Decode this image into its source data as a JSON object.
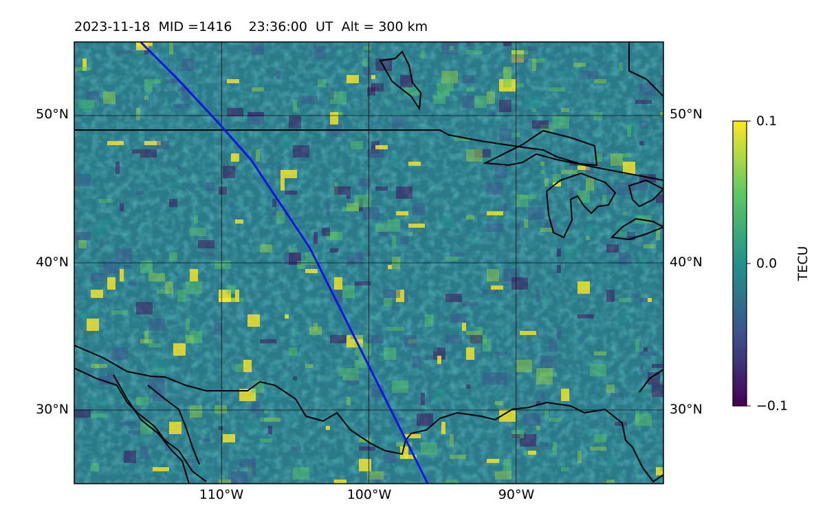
{
  "title": "2023-11-18  MID =1416    23:36:00  UT  Alt = 300 km",
  "map": {
    "extent": {
      "lon": [
        -120,
        -80
      ],
      "lat": [
        25,
        55
      ]
    },
    "lat_ticks": [
      {
        "lat": 50,
        "label": "50°N"
      },
      {
        "lat": 40,
        "label": "40°N"
      },
      {
        "lat": 30,
        "label": "30°N"
      }
    ],
    "lon_ticks": [
      {
        "lon": -110,
        "label": "110°W"
      },
      {
        "lon": -100,
        "label": "100°W"
      },
      {
        "lon": -90,
        "label": "90°W"
      }
    ],
    "grid": true,
    "field": "viridis TEC perturbation map",
    "track_color": "#0a14e6",
    "track_lonlat": [
      [
        -115.5,
        55
      ],
      [
        -113,
        52.5
      ],
      [
        -110.3,
        49.6
      ],
      [
        -108,
        47
      ],
      [
        -106,
        44
      ],
      [
        -104,
        41
      ],
      [
        -102.5,
        38
      ],
      [
        -101,
        35
      ],
      [
        -99.5,
        32
      ],
      [
        -98,
        29
      ],
      [
        -96,
        25
      ]
    ],
    "coast_color": "#000000"
  },
  "colorbar": {
    "label": "TECU",
    "colormap": "viridis",
    "ticks": [
      {
        "value": 0.1,
        "label": "0.1"
      },
      {
        "value": 0.0,
        "label": "0.0"
      },
      {
        "value": -0.1,
        "label": "−0.1"
      }
    ],
    "range": [
      -0.1,
      0.1
    ]
  }
}
